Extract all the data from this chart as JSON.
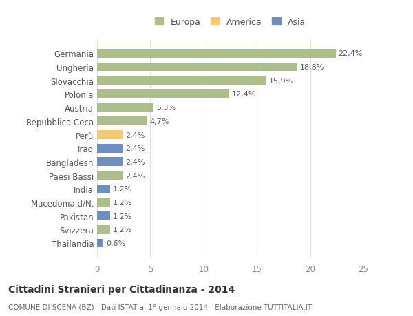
{
  "categories": [
    "Germania",
    "Ungheria",
    "Slovacchia",
    "Polonia",
    "Austria",
    "Repubblica Ceca",
    "Perù",
    "Iraq",
    "Bangladesh",
    "Paesi Bassi",
    "India",
    "Macedonia d/N.",
    "Pakistan",
    "Svizzera",
    "Thailandia"
  ],
  "values": [
    22.4,
    18.8,
    15.9,
    12.4,
    5.3,
    4.7,
    2.4,
    2.4,
    2.4,
    2.4,
    1.2,
    1.2,
    1.2,
    1.2,
    0.6
  ],
  "labels": [
    "22,4%",
    "18,8%",
    "15,9%",
    "12,4%",
    "5,3%",
    "4,7%",
    "2,4%",
    "2,4%",
    "2,4%",
    "2,4%",
    "1,2%",
    "1,2%",
    "1,2%",
    "1,2%",
    "0,6%"
  ],
  "colors": [
    "#abbe8b",
    "#abbe8b",
    "#abbe8b",
    "#abbe8b",
    "#abbe8b",
    "#abbe8b",
    "#f5c97a",
    "#6f8fbf",
    "#6f8fbf",
    "#abbe8b",
    "#6f8fbf",
    "#abbe8b",
    "#6f8fbf",
    "#abbe8b",
    "#6f8fbf"
  ],
  "legend_labels": [
    "Europa",
    "America",
    "Asia"
  ],
  "legend_colors": [
    "#abbe8b",
    "#f5c97a",
    "#6f8fbf"
  ],
  "title": "Cittadini Stranieri per Cittadinanza - 2014",
  "subtitle": "COMUNE DI SCENA (BZ) - Dati ISTAT al 1° gennaio 2014 - Elaborazione TUTTITALIA.IT",
  "xlim": [
    0,
    25
  ],
  "xticks": [
    0,
    5,
    10,
    15,
    20,
    25
  ],
  "bg_color": "#ffffff",
  "grid_color": "#e0e0e0",
  "bar_height": 0.65
}
